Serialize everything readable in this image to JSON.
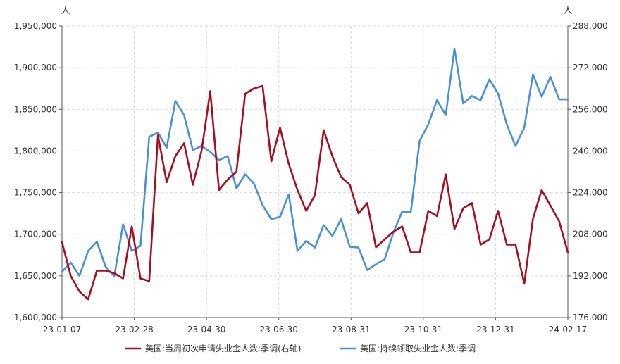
{
  "chart_data": {
    "type": "line",
    "left_axis": {
      "unit": "人",
      "ylim": [
        1600000,
        1950000
      ],
      "ticks": [
        "1,600,000",
        "1,650,000",
        "1,700,000",
        "1,750,000",
        "1,800,000",
        "1,850,000",
        "1,900,000",
        "1,950,000"
      ]
    },
    "right_axis": {
      "unit": "人",
      "ylim": [
        176000,
        288000
      ],
      "ticks": [
        "176,000",
        "192,000",
        "208,000",
        "224,000",
        "240,000",
        "256,000",
        "272,000",
        "288,000"
      ]
    },
    "x_axis": {
      "ticks": [
        "23-01-07",
        "23-02-28",
        "23-04-30",
        "23-06-30",
        "23-08-31",
        "23-10-31",
        "23-12-31",
        "24-02-17"
      ]
    },
    "grid": true,
    "legend_position": "bottom",
    "series": [
      {
        "name": "美国:当周初次申请失业金人数:季调(右轴)",
        "axis": "right",
        "color": "#a50f1f",
        "x": [
          "2023-01-07",
          "2023-01-14",
          "2023-01-21",
          "2023-01-28",
          "2023-02-04",
          "2023-02-11",
          "2023-02-18",
          "2023-02-25",
          "2023-03-04",
          "2023-03-11",
          "2023-03-18",
          "2023-03-25",
          "2023-04-01",
          "2023-04-08",
          "2023-04-15",
          "2023-04-22",
          "2023-04-29",
          "2023-05-06",
          "2023-05-13",
          "2023-05-20",
          "2023-05-27",
          "2023-06-03",
          "2023-06-10",
          "2023-06-17",
          "2023-06-24",
          "2023-07-01",
          "2023-07-08",
          "2023-07-15",
          "2023-07-22",
          "2023-07-29",
          "2023-08-05",
          "2023-08-12",
          "2023-08-19",
          "2023-08-26",
          "2023-09-02",
          "2023-09-09",
          "2023-09-16",
          "2023-09-23",
          "2023-09-30",
          "2023-10-07",
          "2023-10-14",
          "2023-10-21",
          "2023-10-28",
          "2023-11-04",
          "2023-11-11",
          "2023-11-18",
          "2023-11-25",
          "2023-12-02",
          "2023-12-09",
          "2023-12-16",
          "2023-12-23",
          "2023-12-30",
          "2024-01-06",
          "2024-01-13",
          "2024-01-20",
          "2024-01-27",
          "2024-02-03",
          "2024-02-10",
          "2024-02-17"
        ],
        "values": [
          205000,
          192000,
          186000,
          183000,
          194000,
          194000,
          193000,
          191000,
          211000,
          191000,
          190000,
          246000,
          228000,
          238000,
          243000,
          227000,
          240000,
          263000,
          225000,
          229000,
          232000,
          262000,
          264000,
          265000,
          236000,
          249000,
          235000,
          225000,
          217000,
          223000,
          248000,
          238000,
          230000,
          227000,
          216000,
          220000,
          203000,
          206000,
          209000,
          211000,
          201000,
          201000,
          217000,
          215000,
          231000,
          210000,
          218000,
          220000,
          204000,
          206000,
          217000,
          204000,
          204000,
          189000,
          214000,
          225000,
          219000,
          213000,
          201000
        ]
      },
      {
        "name": "美国:持续领取失业金人数:季调",
        "axis": "left",
        "color": "#4a90d9",
        "x": [
          "2023-01-07",
          "2023-01-14",
          "2023-01-21",
          "2023-01-28",
          "2023-02-04",
          "2023-02-11",
          "2023-02-18",
          "2023-02-25",
          "2023-03-04",
          "2023-03-11",
          "2023-03-18",
          "2023-03-25",
          "2023-04-01",
          "2023-04-08",
          "2023-04-15",
          "2023-04-22",
          "2023-04-29",
          "2023-05-06",
          "2023-05-13",
          "2023-05-20",
          "2023-05-27",
          "2023-06-03",
          "2023-06-10",
          "2023-06-17",
          "2023-06-24",
          "2023-07-01",
          "2023-07-08",
          "2023-07-15",
          "2023-07-22",
          "2023-07-29",
          "2023-08-05",
          "2023-08-12",
          "2023-08-19",
          "2023-08-26",
          "2023-09-02",
          "2023-09-09",
          "2023-09-16",
          "2023-09-23",
          "2023-09-30",
          "2023-10-07",
          "2023-10-14",
          "2023-10-21",
          "2023-10-28",
          "2023-11-04",
          "2023-11-11",
          "2023-11-18",
          "2023-11-25",
          "2023-12-02",
          "2023-12-09",
          "2023-12-16",
          "2023-12-23",
          "2023-12-30",
          "2024-01-06",
          "2024-01-13",
          "2024-01-20",
          "2024-01-27",
          "2024-02-03",
          "2024-02-10",
          "2024-02-17"
        ],
        "values": [
          1655000,
          1666000,
          1650000,
          1680000,
          1691000,
          1661000,
          1650000,
          1712000,
          1680000,
          1686000,
          1817000,
          1822000,
          1804000,
          1860000,
          1843000,
          1801000,
          1806000,
          1799000,
          1789000,
          1794000,
          1755000,
          1772000,
          1761000,
          1735000,
          1718000,
          1721000,
          1748000,
          1680000,
          1692000,
          1684000,
          1711000,
          1698000,
          1718000,
          1685000,
          1684000,
          1657000,
          1664000,
          1670000,
          1702000,
          1727000,
          1727000,
          1812000,
          1832000,
          1861000,
          1843000,
          1923000,
          1857000,
          1866000,
          1861000,
          1886000,
          1869000,
          1832000,
          1806000,
          1828000,
          1892000,
          1865000,
          1889000,
          1862000,
          1862000
        ]
      }
    ]
  }
}
